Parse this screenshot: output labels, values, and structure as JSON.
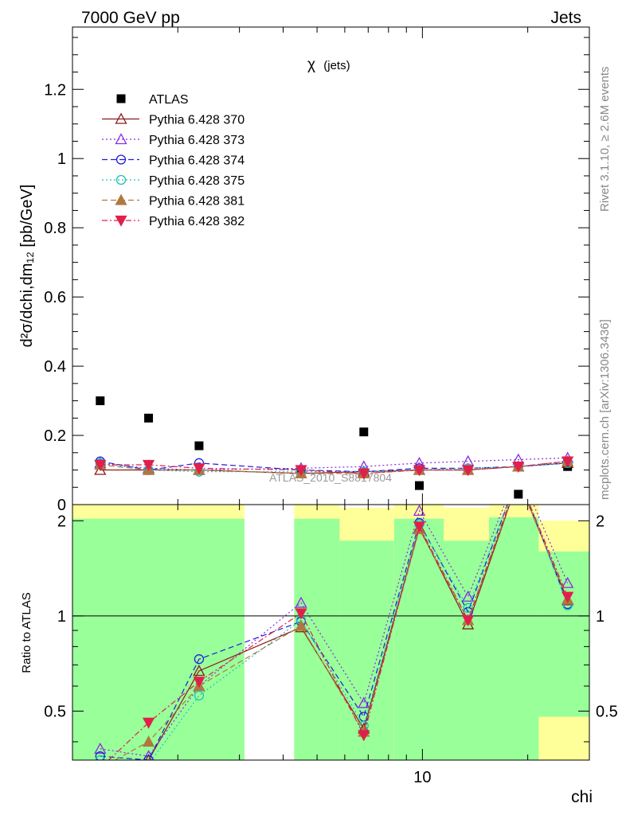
{
  "header": {
    "energy_label": "7000 GeV pp",
    "category_label": "Jets"
  },
  "side_labels": {
    "rivet": "Rivet 3.1.10, ≥ 2.6M events",
    "mcplots": "mcplots.cern.ch [arXiv:1306.3436]"
  },
  "chart_data": [
    {
      "type": "scatter",
      "panel": "main",
      "title_symbol": "χ",
      "title_sub": "(jets)",
      "ylabel": "d²σ/dchi,dm₁₂ [pb/GeV]",
      "watermark": "ATLAS_2010_S8817804",
      "ylim": [
        0,
        1.38
      ],
      "x_scale": "log",
      "xlim": [
        1,
        30
      ],
      "yticks": [
        0,
        0.2,
        0.4,
        0.6,
        0.8,
        1,
        1.2
      ],
      "ytick_labels": [
        "0",
        "0.2",
        "0.4",
        "0.6",
        "0.8",
        "1",
        "1.2"
      ],
      "x": [
        1.2,
        1.65,
        2.3,
        4.5,
        6.8,
        9.8,
        13.5,
        18.8,
        26.0
      ],
      "legend_position": "top-left",
      "series": [
        {
          "name": "ATLAS",
          "color": "#000000",
          "marker": "square-filled",
          "line": "none",
          "values": [
            0.3,
            0.25,
            0.17,
            0.095,
            0.21,
            0.055,
            0.1,
            0.03,
            0.11
          ]
        },
        {
          "name": "Pythia 6.428 370",
          "color": "#8b1a1a",
          "marker": "triangle-open",
          "line": "solid",
          "values": [
            0.1,
            0.1,
            0.1,
            0.09,
            0.095,
            0.1,
            0.1,
            0.11,
            0.12
          ]
        },
        {
          "name": "Pythia 6.428 373",
          "color": "#8a2be2",
          "marker": "triangle-open",
          "line": "dotted",
          "values": [
            0.12,
            0.105,
            0.1,
            0.105,
            0.11,
            0.12,
            0.125,
            0.13,
            0.135
          ]
        },
        {
          "name": "Pythia 6.428 374",
          "color": "#1e1ee0",
          "marker": "circle-open",
          "line": "dashed",
          "values": [
            0.125,
            0.1,
            0.12,
            0.1,
            0.095,
            0.105,
            0.105,
            0.11,
            0.12
          ]
        },
        {
          "name": "Pythia 6.428 375",
          "color": "#20c0b8",
          "marker": "circle-open",
          "line": "dotted",
          "values": [
            0.12,
            0.1,
            0.095,
            0.095,
            0.095,
            0.1,
            0.105,
            0.11,
            0.12
          ]
        },
        {
          "name": "Pythia 6.428 381",
          "color": "#b07840",
          "marker": "triangle-filled",
          "line": "dashed",
          "values": [
            0.115,
            0.1,
            0.1,
            0.09,
            0.09,
            0.1,
            0.1,
            0.11,
            0.125
          ]
        },
        {
          "name": "Pythia 6.428 382",
          "color": "#e0204a",
          "marker": "triangledown-filled",
          "line": "dashdot",
          "values": [
            0.115,
            0.115,
            0.105,
            0.1,
            0.09,
            0.1,
            0.1,
            0.11,
            0.125
          ]
        }
      ]
    },
    {
      "type": "line",
      "panel": "ratio",
      "ylabel": "Ratio to ATLAS",
      "ylim": [
        0.35,
        2.25
      ],
      "x_scale": "log",
      "xlim": [
        1,
        30
      ],
      "xlabel": "chi",
      "xticks": [
        10
      ],
      "xtick_labels": [
        "10"
      ],
      "yticks": [
        0.5,
        1,
        2
      ],
      "ytick_labels": [
        "0.5",
        "1",
        "2"
      ],
      "reference_line": 1,
      "x": [
        1.2,
        1.65,
        2.3,
        4.5,
        6.8,
        9.8,
        13.5,
        18.8,
        26.0
      ],
      "uncertainty_bands": [
        {
          "x_from": 1.0,
          "x_to": 3.1,
          "green": [
            0.35,
            2.03
          ],
          "yellow": [
            0.35,
            2.25
          ]
        },
        {
          "x_from": 4.3,
          "x_to": 5.8,
          "green": [
            0.35,
            2.03
          ],
          "yellow": [
            0.35,
            2.25
          ]
        },
        {
          "x_from": 5.8,
          "x_to": 8.3,
          "green": [
            0.35,
            1.73
          ],
          "yellow": [
            0.35,
            2.2
          ]
        },
        {
          "x_from": 8.3,
          "x_to": 11.5,
          "green": [
            0.35,
            2.03
          ],
          "yellow": [
            0.35,
            2.25
          ]
        },
        {
          "x_from": 11.5,
          "x_to": 15.5,
          "green": [
            0.35,
            1.73
          ],
          "yellow": [
            0.35,
            2.2
          ]
        },
        {
          "x_from": 15.5,
          "x_to": 21.5,
          "green": [
            0.35,
            2.05
          ],
          "yellow": [
            0.35,
            2.25
          ]
        },
        {
          "x_from": 21.5,
          "x_to": 30.0,
          "green": [
            0.48,
            1.6
          ],
          "yellow": [
            0.35,
            2.0
          ]
        }
      ],
      "series": [
        {
          "name": "Pythia 6.428 370",
          "values": [
            0.33,
            0.35,
            0.67,
            0.92,
            0.44,
            1.9,
            0.94,
            2.7,
            1.12
          ]
        },
        {
          "name": "Pythia 6.428 373",
          "values": [
            0.38,
            0.36,
            0.6,
            1.1,
            0.53,
            2.15,
            1.15,
            2.9,
            1.27
          ]
        },
        {
          "name": "Pythia 6.428 374",
          "values": [
            0.36,
            0.35,
            0.73,
            0.96,
            0.48,
            1.97,
            1.03,
            2.8,
            1.09
          ]
        },
        {
          "name": "Pythia 6.428 375",
          "values": [
            0.35,
            0.34,
            0.56,
            0.97,
            0.45,
            1.95,
            1.06,
            2.8,
            1.08
          ]
        },
        {
          "name": "Pythia 6.428 381",
          "values": [
            0.33,
            0.4,
            0.6,
            0.93,
            0.43,
            1.88,
            0.97,
            2.7,
            1.13
          ]
        },
        {
          "name": "Pythia 6.428 382",
          "values": [
            0.33,
            0.46,
            0.62,
            1.02,
            0.42,
            1.92,
            0.97,
            2.75,
            1.15
          ]
        }
      ]
    }
  ]
}
